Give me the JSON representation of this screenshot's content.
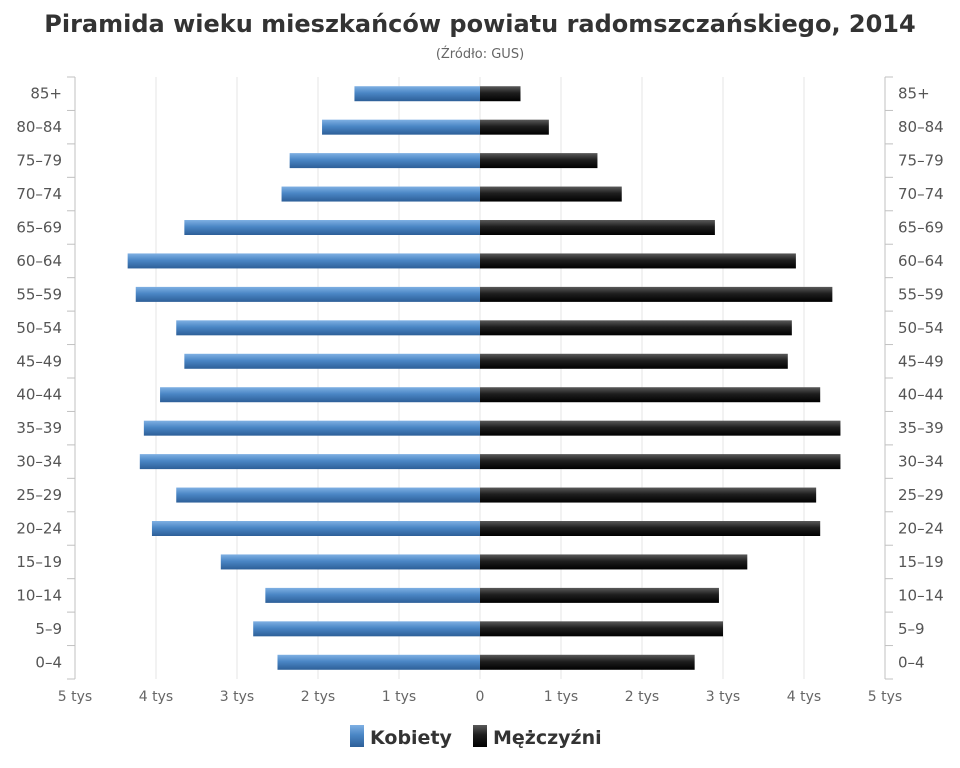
{
  "chart_data": {
    "type": "bar",
    "orientation": "horizontal-pyramid",
    "title": "Piramida wieku mieszkańców powiatu radomszczańskiego, 2014",
    "subtitle": "(Źródło: GUS)",
    "categories": [
      "85+",
      "80–84",
      "75–79",
      "70–74",
      "65–69",
      "60–64",
      "55–59",
      "50–54",
      "45–49",
      "40–44",
      "35–39",
      "30–34",
      "25–29",
      "20–24",
      "15–19",
      "10–14",
      "5–9",
      "0–4"
    ],
    "series": [
      {
        "name": "Kobiety",
        "color": "#4a86c5",
        "side": "left",
        "values": [
          1550,
          1950,
          2350,
          2450,
          3650,
          4350,
          4250,
          3750,
          3650,
          3950,
          4150,
          4200,
          3750,
          4050,
          3200,
          2650,
          2800,
          2500
        ]
      },
      {
        "name": "Mężczyźni",
        "color": "#222222",
        "side": "right",
        "values": [
          500,
          850,
          1450,
          1750,
          2900,
          3900,
          4350,
          3850,
          3800,
          4200,
          4450,
          4450,
          4150,
          4200,
          3300,
          2950,
          3000,
          2650
        ]
      }
    ],
    "xlim": [
      -5000,
      5000
    ],
    "x_ticks": [
      -5000,
      -4000,
      -3000,
      -2000,
      -1000,
      0,
      1000,
      2000,
      3000,
      4000,
      5000
    ],
    "x_tick_labels": [
      "5 tys",
      "4 tys",
      "3 tys",
      "2 tys",
      "1 tys",
      "0",
      "1 tys",
      "2 tys",
      "3 tys",
      "4 tys",
      "5 tys"
    ],
    "grid": true,
    "legend_position": "bottom-center",
    "category_labels_both_sides": true
  }
}
